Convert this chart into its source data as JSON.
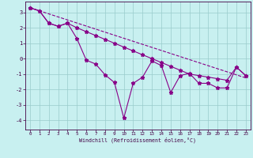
{
  "xlabel": "Windchill (Refroidissement éolien,°C)",
  "line_color": "#880088",
  "bg_color": "#c8f0f0",
  "grid_color": "#99cccc",
  "xlim": [
    -0.5,
    23.5
  ],
  "ylim": [
    -4.6,
    3.7
  ],
  "yticks": [
    -4,
    -3,
    -2,
    -1,
    0,
    1,
    2,
    3
  ],
  "xticks": [
    0,
    1,
    2,
    3,
    4,
    5,
    6,
    7,
    8,
    9,
    10,
    11,
    12,
    13,
    14,
    15,
    16,
    17,
    18,
    19,
    20,
    21,
    22,
    23
  ],
  "jagged_x": [
    0,
    1,
    2,
    3,
    4,
    5,
    6,
    7,
    8,
    9,
    10,
    11,
    12,
    13,
    14,
    15,
    16,
    17,
    18,
    19,
    20,
    21,
    22,
    23
  ],
  "jagged_y": [
    3.3,
    3.1,
    2.3,
    2.1,
    2.3,
    1.3,
    -0.1,
    -0.35,
    -1.05,
    -1.55,
    -3.85,
    -1.6,
    -1.2,
    -0.15,
    -0.45,
    -2.2,
    -1.1,
    -0.95,
    -1.6,
    -1.6,
    -1.9,
    -1.9,
    -0.55,
    -1.1
  ],
  "smooth_x": [
    0,
    1,
    2,
    3,
    4,
    5,
    6,
    7,
    8,
    9,
    10,
    11,
    12,
    13,
    14,
    15,
    16,
    17,
    18,
    19,
    20,
    21,
    22,
    23
  ],
  "smooth_y": [
    3.3,
    3.1,
    2.3,
    2.1,
    2.3,
    2.0,
    1.75,
    1.5,
    1.25,
    1.0,
    0.75,
    0.5,
    0.25,
    0.0,
    -0.25,
    -0.5,
    -0.75,
    -1.0,
    -1.1,
    -1.2,
    -1.3,
    -1.4,
    -0.55,
    -1.1
  ],
  "trend_x": [
    0,
    23
  ],
  "trend_y": [
    3.3,
    -1.25
  ]
}
